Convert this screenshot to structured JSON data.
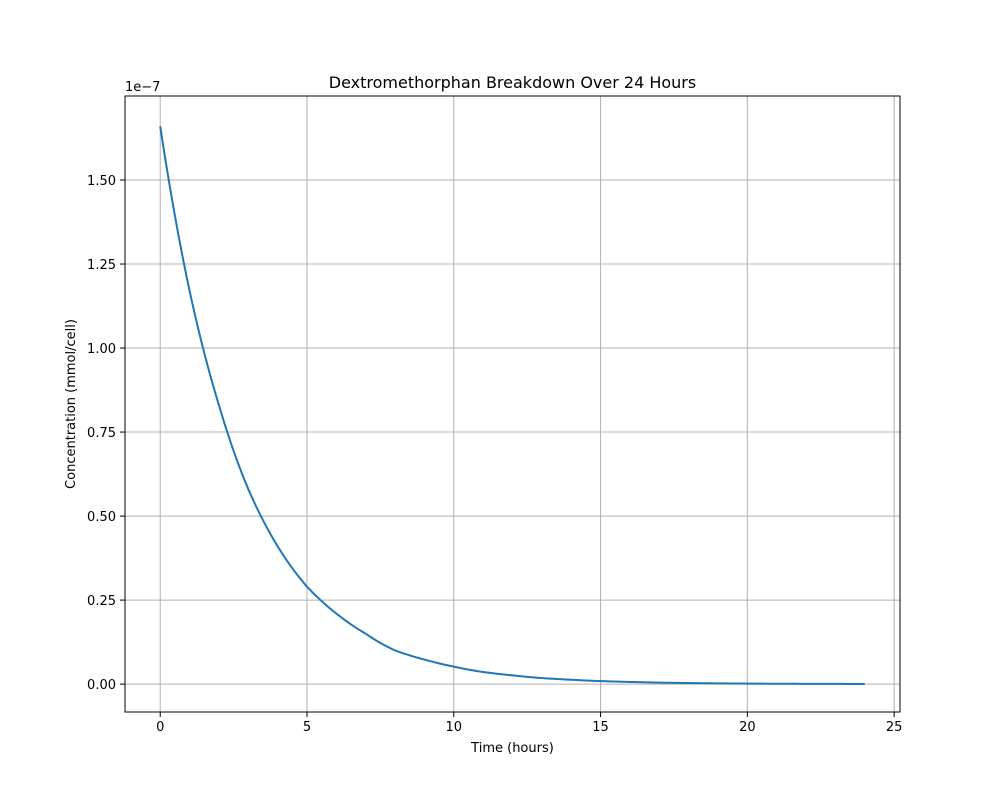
{
  "chart_data": {
    "type": "line",
    "title": "Dextromethorphan Breakdown Over 24 Hours",
    "xlabel": "Time (hours)",
    "ylabel": "Concentration (mmol/cell)",
    "y_offset_label": "1e−7",
    "xlim": [
      -1.2,
      25.2
    ],
    "ylim": [
      -0.083,
      1.75
    ],
    "x_ticks": [
      0,
      5,
      10,
      15,
      20,
      25
    ],
    "x_tick_labels": [
      "0",
      "5",
      "10",
      "15",
      "20",
      "25"
    ],
    "y_ticks": [
      0.0,
      0.25,
      0.5,
      0.75,
      1.0,
      1.25,
      1.5
    ],
    "y_tick_labels": [
      "0.00",
      "0.25",
      "0.50",
      "0.75",
      "1.00",
      "1.25",
      "1.50"
    ],
    "grid": true,
    "series": [
      {
        "color": "#1f77b4",
        "x": [
          0,
          1,
          2,
          3,
          4,
          5,
          6,
          7,
          8,
          9,
          10,
          11,
          12,
          13,
          14,
          15,
          16,
          17,
          18,
          19,
          20,
          21,
          22,
          23,
          24
        ],
        "y": [
          1.66,
          1.17,
          0.83,
          0.58,
          0.41,
          0.29,
          0.21,
          0.15,
          0.1,
          0.073,
          0.052,
          0.036,
          0.026,
          0.018,
          0.013,
          0.009,
          0.0064,
          0.0045,
          0.0032,
          0.0022,
          0.0016,
          0.0011,
          0.0008,
          0.0006,
          0.0004
        ]
      }
    ]
  }
}
